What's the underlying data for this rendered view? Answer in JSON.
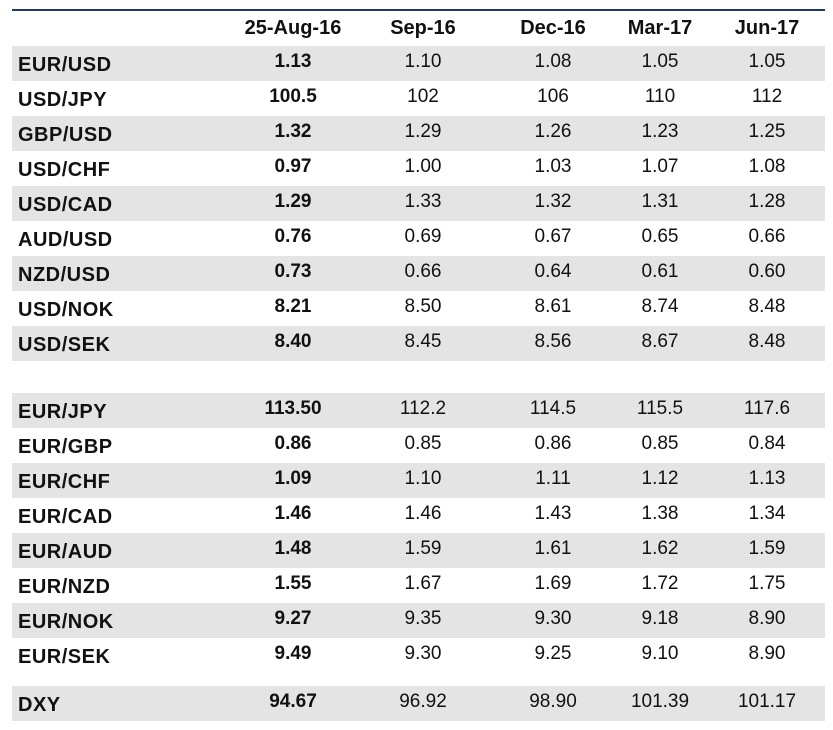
{
  "table": {
    "columns": [
      "25-Aug-16",
      "Sep-16",
      "Dec-16",
      "Mar-17",
      "Jun-17"
    ],
    "groups": [
      {
        "rows": [
          {
            "label": "EUR/USD",
            "values": [
              "1.13",
              "1.10",
              "1.08",
              "1.05",
              "1.05"
            ]
          },
          {
            "label": "USD/JPY",
            "values": [
              "100.5",
              "102",
              "106",
              "110",
              "112"
            ]
          },
          {
            "label": "GBP/USD",
            "values": [
              "1.32",
              "1.29",
              "1.26",
              "1.23",
              "1.25"
            ]
          },
          {
            "label": "USD/CHF",
            "values": [
              "0.97",
              "1.00",
              "1.03",
              "1.07",
              "1.08"
            ]
          },
          {
            "label": "USD/CAD",
            "values": [
              "1.29",
              "1.33",
              "1.32",
              "1.31",
              "1.28"
            ]
          },
          {
            "label": "AUD/USD",
            "values": [
              "0.76",
              "0.69",
              "0.67",
              "0.65",
              "0.66"
            ]
          },
          {
            "label": "NZD/USD",
            "values": [
              "0.73",
              "0.66",
              "0.64",
              "0.61",
              "0.60"
            ]
          },
          {
            "label": "USD/NOK",
            "values": [
              "8.21",
              "8.50",
              "8.61",
              "8.74",
              "8.48"
            ]
          },
          {
            "label": "USD/SEK",
            "values": [
              "8.40",
              "8.45",
              "8.56",
              "8.67",
              "8.48"
            ]
          }
        ]
      },
      {
        "rows": [
          {
            "label": "EUR/JPY",
            "values": [
              "113.50",
              "112.2",
              "114.5",
              "115.5",
              "117.6"
            ]
          },
          {
            "label": "EUR/GBP",
            "values": [
              "0.86",
              "0.85",
              "0.86",
              "0.85",
              "0.84"
            ]
          },
          {
            "label": "EUR/CHF",
            "values": [
              "1.09",
              "1.10",
              "1.11",
              "1.12",
              "1.13"
            ]
          },
          {
            "label": "EUR/CAD",
            "values": [
              "1.46",
              "1.46",
              "1.43",
              "1.38",
              "1.34"
            ]
          },
          {
            "label": "EUR/AUD",
            "values": [
              "1.48",
              "1.59",
              "1.61",
              "1.62",
              "1.59"
            ]
          },
          {
            "label": "EUR/NZD",
            "values": [
              "1.55",
              "1.67",
              "1.69",
              "1.72",
              "1.75"
            ]
          },
          {
            "label": "EUR/NOK",
            "values": [
              "9.27",
              "9.35",
              "9.30",
              "9.18",
              "8.90"
            ]
          },
          {
            "label": "EUR/SEK",
            "values": [
              "9.49",
              "9.30",
              "9.25",
              "9.10",
              "8.90"
            ]
          }
        ]
      },
      {
        "rows": [
          {
            "label": "DXY",
            "values": [
              "94.67",
              "96.92",
              "98.90",
              "101.39",
              "101.17"
            ]
          }
        ]
      }
    ]
  }
}
